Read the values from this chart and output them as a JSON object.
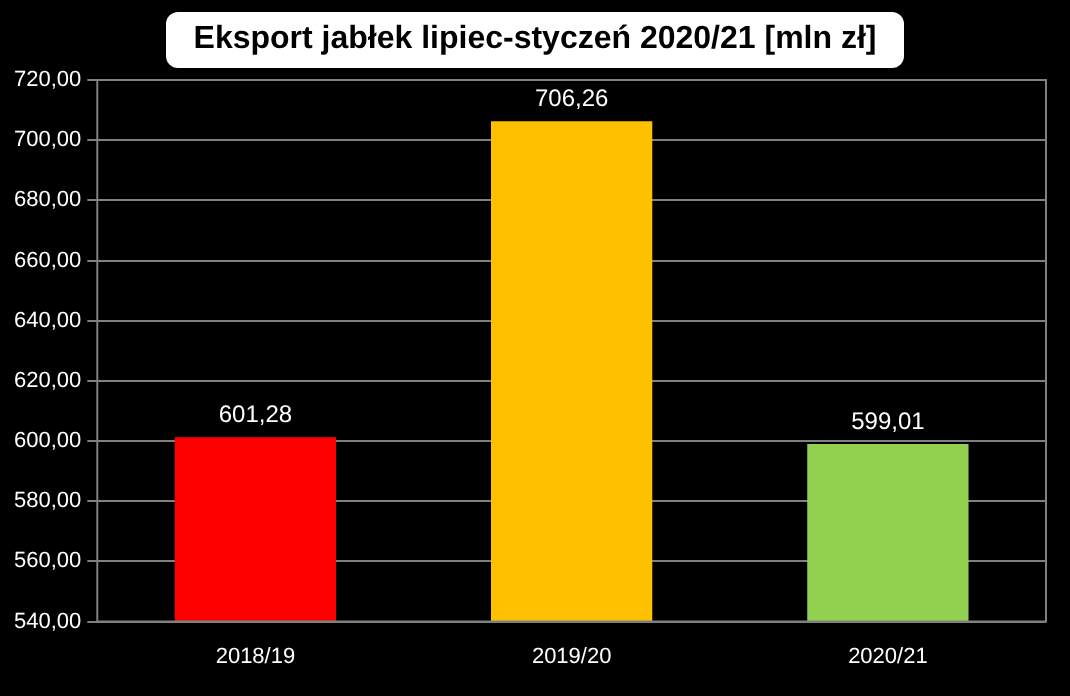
{
  "chart_data": {
    "type": "bar",
    "title": "Eksport jabłek lipiec-styczeń 2020/21 [mln zł]",
    "categories": [
      "2018/19",
      "2019/20",
      "2020/21"
    ],
    "values": [
      601.28,
      706.26,
      599.01
    ],
    "value_labels": [
      "601,28",
      "706,26",
      "599,01"
    ],
    "colors": [
      "#ff0000",
      "#ffc000",
      "#92d050"
    ],
    "ylim": [
      540,
      720
    ],
    "yticks": [
      {
        "value": 540,
        "label": "540,00"
      },
      {
        "value": 560,
        "label": "560,00"
      },
      {
        "value": 580,
        "label": "580,00"
      },
      {
        "value": 600,
        "label": "600,00"
      },
      {
        "value": 620,
        "label": "620,00"
      },
      {
        "value": 640,
        "label": "640,00"
      },
      {
        "value": 660,
        "label": "660,00"
      },
      {
        "value": 680,
        "label": "680,00"
      },
      {
        "value": 700,
        "label": "700,00"
      },
      {
        "value": 720,
        "label": "720,00"
      }
    ],
    "grid": "y",
    "legend": false
  }
}
